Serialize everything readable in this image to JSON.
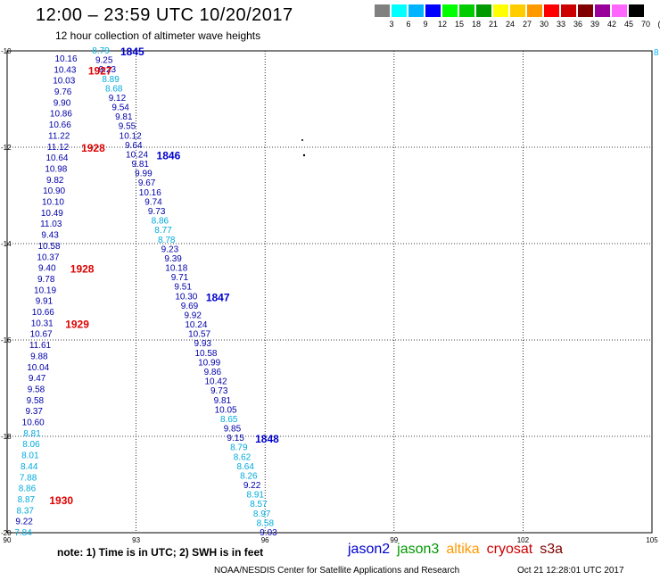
{
  "header": {
    "title": "12:00 – 23:59 UTC 10/20/2017",
    "subtitle": "12 hour collection of altimeter wave heights"
  },
  "colorbar": {
    "colors": [
      "#808080",
      "#00ffff",
      "#00b4ff",
      "#0000ff",
      "#00ff00",
      "#00cc00",
      "#009900",
      "#ffff00",
      "#ffcc00",
      "#ff9900",
      "#ff0000",
      "#cc0000",
      "#800000",
      "#990099",
      "#ff66ff",
      "#000000"
    ],
    "labels": [
      "3",
      "6",
      "9",
      "12",
      "15",
      "18",
      "21",
      "24",
      "27",
      "30",
      "33",
      "36",
      "39",
      "42",
      "45",
      "70",
      "(ft)"
    ]
  },
  "map": {
    "lon_range": [
      90,
      105
    ],
    "lat_range": [
      -20,
      -10
    ],
    "lon_ticks": [
      90,
      93,
      96,
      99,
      102,
      105
    ],
    "lat_ticks": [
      -10,
      -12,
      -14,
      -16,
      -18,
      -20
    ],
    "lon_tick_labels": [
      "90",
      "93",
      "96",
      "99",
      "102",
      "105"
    ],
    "lat_tick_labels": [
      "-10",
      "-12",
      "-14",
      "-16",
      "-18",
      "-20"
    ],
    "edge_label": "8",
    "pass_a": {
      "values": [
        "10.16",
        "10.43",
        "10.03",
        "9.76",
        "9.90",
        "10.86",
        "10.66",
        "11.22",
        "11.12",
        "10.64",
        "10.98",
        "9.82",
        "10.90",
        "10.10",
        "10.49",
        "11.03",
        "9.43",
        "10.58",
        "10.37",
        "9.40",
        "9.78",
        "10.19",
        "9.91",
        "10.66",
        "10.31",
        "10.67",
        "11.61",
        "9.88",
        "10.04",
        "9.47",
        "9.58",
        "9.58",
        "9.37",
        "10.60",
        "8.81",
        "8.06",
        "8.01",
        "8.44",
        "7.88",
        "8.86",
        "8.87",
        "8.37",
        "9.22",
        "7.84"
      ],
      "times": [
        {
          "label": "1927",
          "index": 1
        },
        {
          "label": "1928",
          "index": 8
        },
        {
          "label": "1928",
          "index": 19
        },
        {
          "label": "1929",
          "index": 24
        },
        {
          "label": "1930",
          "index": 40
        }
      ]
    },
    "pass_b": {
      "values": [
        "8.79",
        "9.25",
        "9.23",
        "8.89",
        "8.68",
        "9.12",
        "9.54",
        "9.81",
        "9.55",
        "10.12",
        "9.64",
        "10.24",
        "9.81",
        "9.99",
        "9.67",
        "10.16",
        "9.74",
        "9.73",
        "8.86",
        "8.77",
        "8.78",
        "9.23",
        "9.39",
        "10.18",
        "9.71",
        "9.51",
        "10.30",
        "9.69",
        "9.92",
        "10.24",
        "10.57",
        "9.93",
        "10.58",
        "10.99",
        "9.86",
        "10.42",
        "9.73",
        "9.81",
        "10.05",
        "8.65",
        "9.85",
        "9.15",
        "8.79",
        "8.62",
        "8.64",
        "8.26",
        "9.22",
        "8.91",
        "8.57",
        "8.97",
        "8.58",
        "9.03"
      ],
      "times": [
        {
          "label": "1845",
          "index": 0
        },
        {
          "label": "1846",
          "index": 11
        },
        {
          "label": "1847",
          "index": 26
        },
        {
          "label": "1848",
          "index": 41
        }
      ]
    }
  },
  "footer": {
    "note": "note: 1) Time is in UTC; 2) SWH is in feet",
    "satellites": [
      {
        "name": "jason2",
        "color": "#0000cc"
      },
      {
        "name": "jason3",
        "color": "#009900"
      },
      {
        "name": "altika",
        "color": "#ff9900"
      },
      {
        "name": "cryosat",
        "color": "#cc0000"
      },
      {
        "name": "s3a",
        "color": "#800000"
      }
    ],
    "credit": "NOAA/NESDIS Center for Satellite Applications and Research",
    "timestamp": "Oct 21 12:28:01 UTC 2017"
  }
}
